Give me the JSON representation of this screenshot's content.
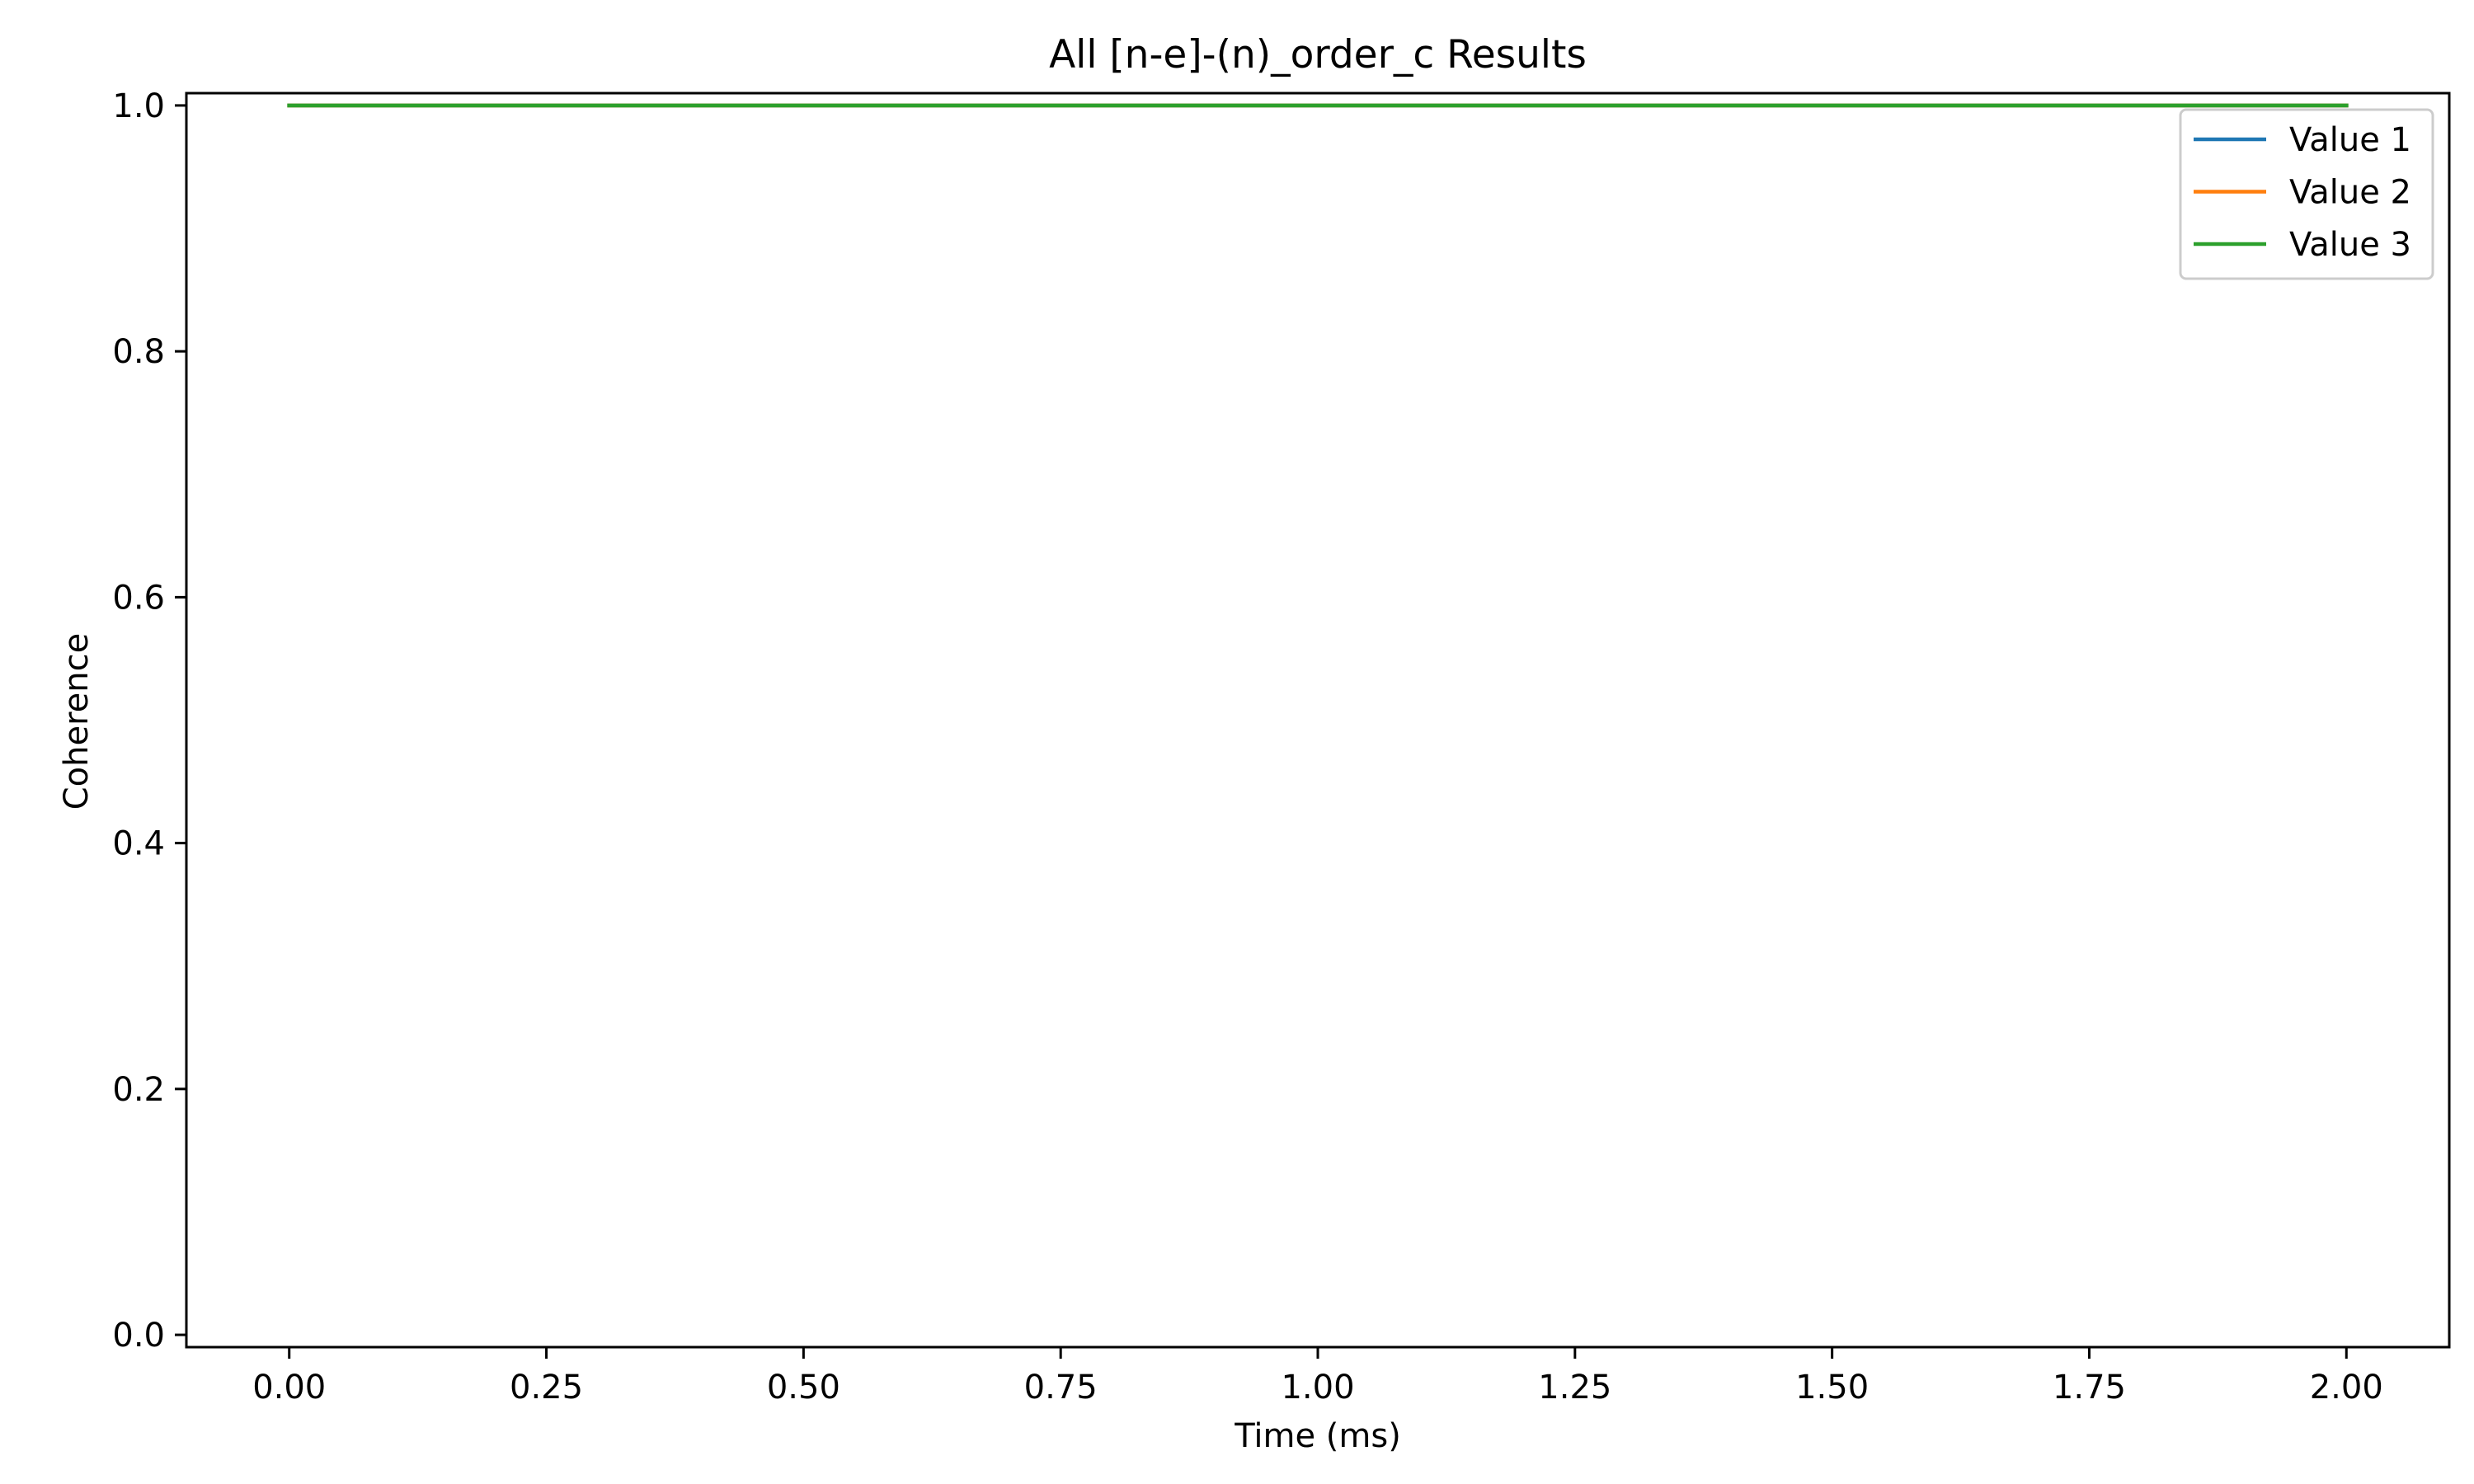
{
  "chart_data": {
    "type": "line",
    "title": "All [n-e]-(n)_order_c Results",
    "xlabel": "Time (ms)",
    "ylabel": "Coherence",
    "xlim": [
      -0.1,
      2.1
    ],
    "ylim": [
      -0.01,
      1.01
    ],
    "xticks": [
      0.0,
      0.25,
      0.5,
      0.75,
      1.0,
      1.25,
      1.5,
      1.75,
      2.0
    ],
    "xtick_labels": [
      "0.00",
      "0.25",
      "0.50",
      "0.75",
      "1.00",
      "1.25",
      "1.50",
      "1.75",
      "2.00"
    ],
    "yticks": [
      0.0,
      0.2,
      0.4,
      0.6,
      0.8,
      1.0
    ],
    "ytick_labels": [
      "0.0",
      "0.2",
      "0.4",
      "0.6",
      "0.8",
      "1.0"
    ],
    "grid": false,
    "legend_position": "top-right",
    "series": [
      {
        "name": "Value 1",
        "color": "#1f77b4",
        "x": [
          0.0,
          2.0
        ],
        "y": [
          1.0,
          1.0
        ]
      },
      {
        "name": "Value 2",
        "color": "#ff7f0e",
        "x": [
          0.0,
          2.0
        ],
        "y": [
          1.0,
          1.0
        ]
      },
      {
        "name": "Value 3",
        "color": "#2ca02c",
        "x": [
          0.0,
          2.0
        ],
        "y": [
          1.0,
          1.0
        ]
      }
    ]
  }
}
